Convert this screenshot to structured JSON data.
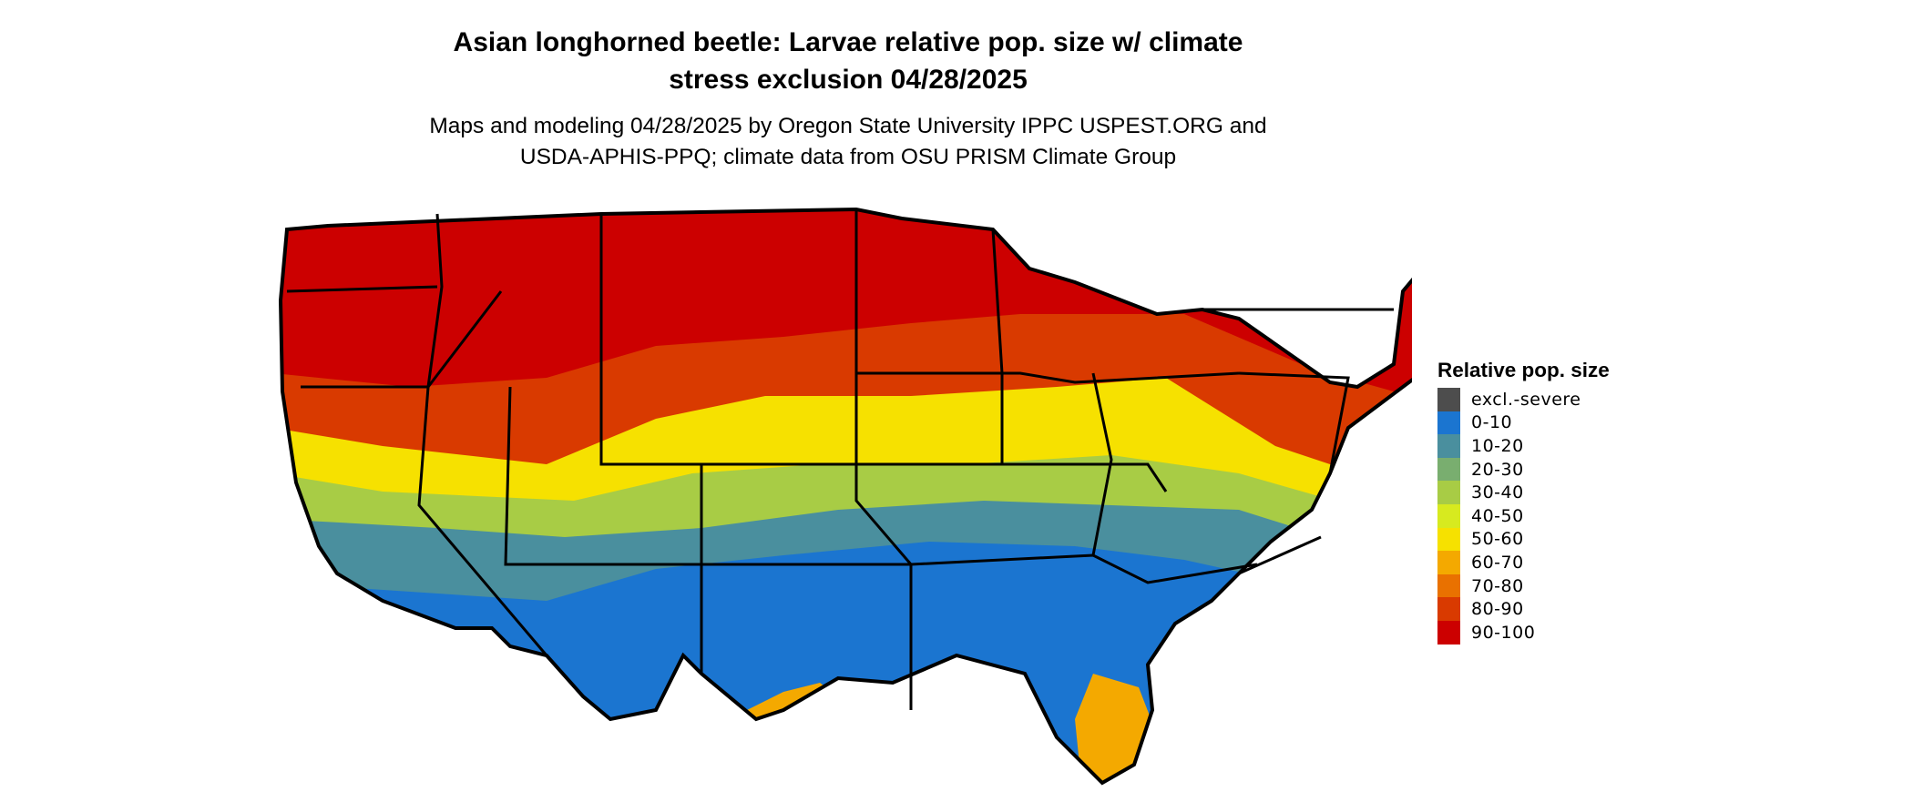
{
  "title_line1": "Asian longhorned beetle: Larvae relative pop. size w/ climate",
  "title_line2": "stress exclusion 04/28/2025",
  "subtitle_line1": "Maps and modeling 04/28/2025 by Oregon State University IPPC USPEST.ORG and",
  "subtitle_line2": "USDA-APHIS-PPQ; climate data from OSU PRISM Climate Group",
  "legend": {
    "title": "Relative pop. size",
    "items": [
      {
        "label": "excl.-severe",
        "color": "#4d4d4d"
      },
      {
        "label": "0-10",
        "color": "#1b75d0"
      },
      {
        "label": "10-20",
        "color": "#4a8f9e"
      },
      {
        "label": "20-30",
        "color": "#79ae6f"
      },
      {
        "label": "30-40",
        "color": "#a8cc45"
      },
      {
        "label": "40-50",
        "color": "#d7ea1f"
      },
      {
        "label": "50-60",
        "color": "#f6e100"
      },
      {
        "label": "60-70",
        "color": "#f4a900"
      },
      {
        "label": "70-80",
        "color": "#e97100"
      },
      {
        "label": "80-90",
        "color": "#d93a00"
      },
      {
        "label": "90-100",
        "color": "#cc0000"
      }
    ]
  },
  "map": {
    "region": "conterminous-us",
    "zones": [
      {
        "name": "north",
        "range": "90-100",
        "color": "#cc0000"
      },
      {
        "name": "central-upper",
        "range": "80-90",
        "color": "#d93a00"
      },
      {
        "name": "central",
        "range": "50-60",
        "color": "#f6e100"
      },
      {
        "name": "central-lower",
        "range": "30-40",
        "color": "#a8cc45"
      },
      {
        "name": "south-upper",
        "range": "10-20",
        "color": "#4a8f9e"
      },
      {
        "name": "south",
        "range": "0-10",
        "color": "#1b75d0"
      },
      {
        "name": "gulf-coast",
        "range": "60-70",
        "color": "#f4a900"
      }
    ]
  }
}
